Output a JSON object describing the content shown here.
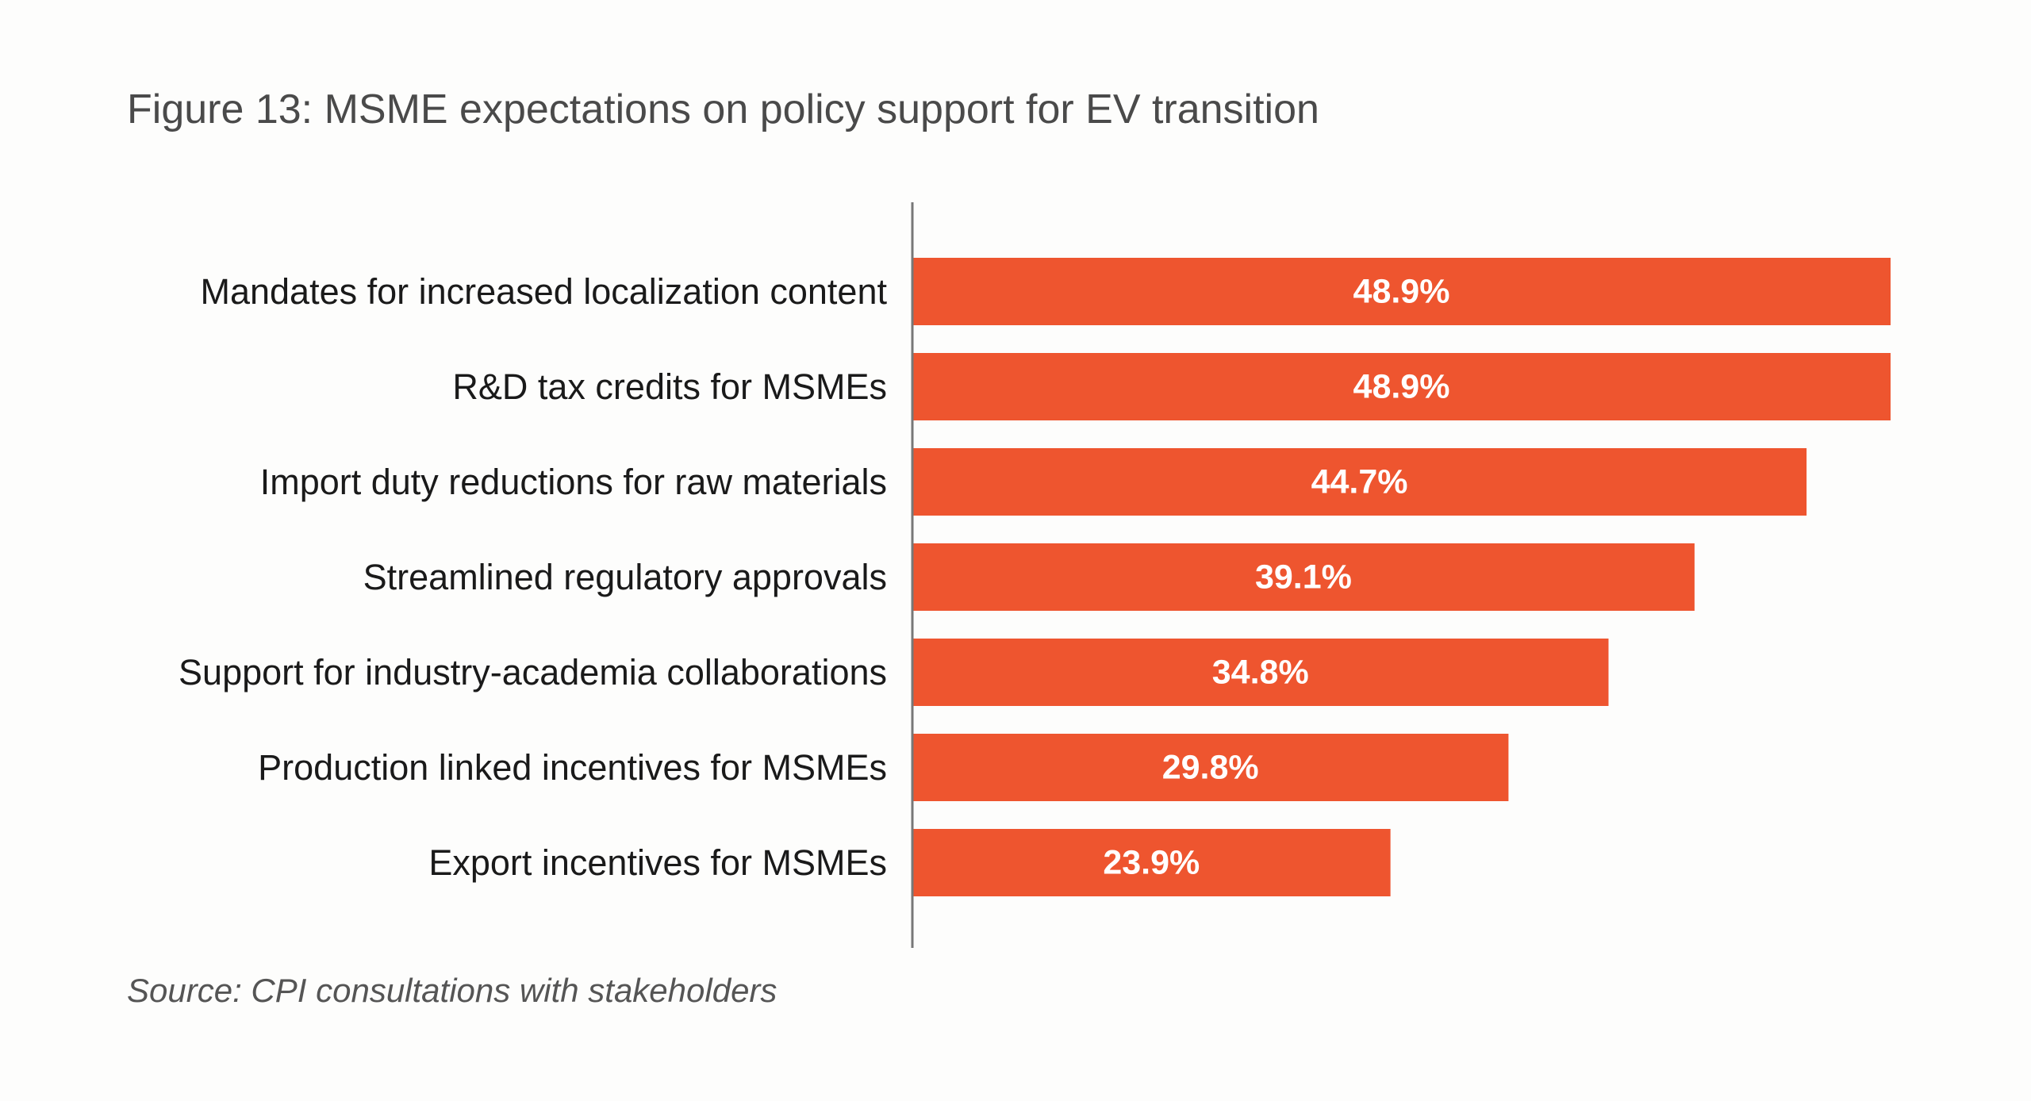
{
  "title": "Figure 13: MSME expectations on policy support for EV transition",
  "source": "Source: CPI consultations with stakeholders",
  "colors": {
    "bar": "#ee552f",
    "axis": "#777777",
    "category_text": "#1a1a1a",
    "value_text": "#ffffff"
  },
  "chart_data": {
    "type": "bar",
    "orientation": "horizontal",
    "categories": [
      "Mandates for increased localization content",
      "R&D tax credits for MSMEs",
      "Import duty reductions for raw materials",
      "Streamlined regulatory approvals",
      "Support for industry-academia collaborations",
      "Production linked incentives for MSMEs",
      "Export incentives for MSMEs"
    ],
    "values": [
      48.9,
      48.9,
      44.7,
      39.1,
      34.8,
      29.8,
      23.9
    ],
    "value_labels": [
      "48.9%",
      "48.9%",
      "44.7%",
      "39.1%",
      "34.8%",
      "29.8%",
      "23.9%"
    ],
    "xlim": [
      0,
      48.9
    ],
    "grid": false,
    "legend": "none"
  }
}
